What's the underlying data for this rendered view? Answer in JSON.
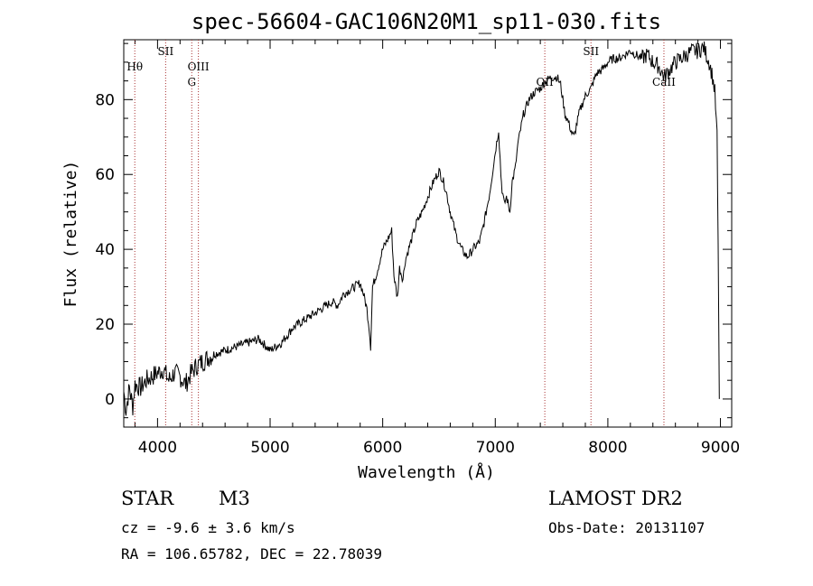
{
  "chart_data": {
    "type": "line",
    "title": "spec-56604-GAC106N20M1_sp11-030.fits",
    "xlabel": "Wavelength (Å)",
    "ylabel": "Flux (relative)",
    "xlim": [
      3700,
      9100
    ],
    "ylim": [
      -7.5,
      96
    ],
    "xticks": [
      4000,
      5000,
      6000,
      7000,
      8000,
      9000
    ],
    "yticks": [
      0,
      20,
      40,
      60,
      80
    ],
    "grid": false,
    "series": [
      {
        "x": [
          3700,
          3720,
          3750,
          3780,
          3800,
          3850,
          3900,
          3950,
          4000,
          4050,
          4100,
          4150,
          4200,
          4250,
          4300,
          4350,
          4400,
          4450,
          4500,
          4600,
          4700,
          4800,
          4900,
          5000,
          5100,
          5150,
          5200,
          5300,
          5400,
          5500,
          5550,
          5600,
          5650,
          5700,
          5750,
          5800,
          5830,
          5860,
          5880,
          5893,
          5910,
          5950,
          6000,
          6050,
          6080,
          6100,
          6130,
          6150,
          6180,
          6200,
          6250,
          6300,
          6350,
          6400,
          6450,
          6500,
          6540,
          6560,
          6600,
          6650,
          6700,
          6750,
          6780,
          6800,
          6830,
          6860,
          6900,
          6950,
          7000,
          7030,
          7050,
          7060,
          7080,
          7100,
          7130,
          7150,
          7180,
          7200,
          7250,
          7300,
          7350,
          7400,
          7450,
          7500,
          7550,
          7580,
          7600,
          7620,
          7650,
          7680,
          7700,
          7720,
          7750,
          7800,
          7850,
          7900,
          7950,
          8000,
          8050,
          8100,
          8150,
          8200,
          8250,
          8300,
          8350,
          8400,
          8450,
          8500,
          8550,
          8600,
          8650,
          8700,
          8750,
          8800,
          8850,
          8900,
          8930,
          8950,
          8970,
          8980,
          8990
        ],
        "y": [
          2,
          -3,
          3,
          -2,
          4,
          3,
          5,
          6,
          7,
          8,
          5,
          7,
          6,
          4,
          7,
          9,
          10,
          11,
          12,
          13,
          14,
          15,
          16,
          13,
          15,
          17,
          19,
          21,
          23,
          25,
          26,
          25,
          28,
          29,
          30,
          31,
          28,
          24,
          19,
          14,
          30,
          34,
          40,
          43,
          45,
          33,
          27,
          35,
          32,
          37,
          42,
          47,
          50,
          54,
          58,
          61,
          58,
          56,
          50,
          44,
          40,
          38,
          39,
          40,
          41,
          42,
          47,
          55,
          66,
          72,
          60,
          56,
          52,
          54,
          50,
          58,
          62,
          68,
          76,
          80,
          82,
          83,
          85,
          86,
          86,
          84,
          80,
          76,
          74,
          71,
          70,
          73,
          77,
          81,
          83,
          87,
          88,
          90,
          91,
          91,
          92,
          93,
          92,
          91,
          92,
          90,
          89,
          86,
          88,
          90,
          91,
          92,
          93,
          93,
          94,
          90,
          86,
          82,
          70,
          40,
          0
        ]
      }
    ],
    "line_markers": [
      {
        "label": "Hθ",
        "x": 3798,
        "row": 2
      },
      {
        "label": "SII",
        "x": 4072,
        "row": 1
      },
      {
        "label": "OIII",
        "x": 4363,
        "row": 2
      },
      {
        "label": "G",
        "x": 4304,
        "row": 3
      },
      {
        "label": "OII",
        "x": 7440,
        "row": 3
      },
      {
        "label": "SII",
        "x": 7850,
        "row": 1
      },
      {
        "label": "CaII",
        "x": 8498,
        "row": 3
      }
    ],
    "annotations": {
      "class": "STAR",
      "subclass": "M3",
      "survey": "LAMOST DR2",
      "cz": "cz = -9.6 ± 3.6 km/s",
      "obs_date": "Obs-Date: 20131107",
      "coords": "RA = 106.65782, DEC =  22.78039"
    },
    "colors": {
      "line": "#000000",
      "marker": "#a83232",
      "axes": "#000000"
    }
  }
}
